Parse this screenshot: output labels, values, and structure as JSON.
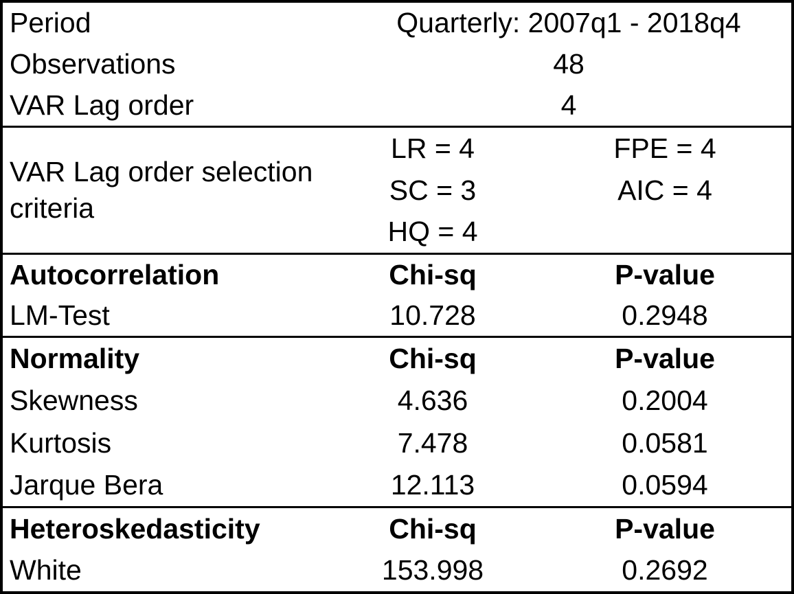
{
  "page": {
    "background_color": "#ffffff",
    "border_color": "#000000",
    "text_color": "#000000"
  },
  "table": {
    "info_rows": [
      {
        "label": "Period",
        "value": "Quarterly: 2007q1 - 2018q4"
      },
      {
        "label": "Observations",
        "value": "48"
      },
      {
        "label": "VAR Lag order",
        "value": "4"
      }
    ],
    "lag_selection": {
      "label_line1": "VAR Lag order selection",
      "label_line2": "criteria",
      "criteria_col_a": [
        "LR = 4",
        "SC = 3",
        "HQ = 4"
      ],
      "criteria_col_b": [
        "FPE = 4",
        "AIC = 4"
      ]
    },
    "test_sections": [
      {
        "title": "Autocorrelation",
        "stat_header": "Chi-sq",
        "p_header": "P-value",
        "rows": [
          {
            "label": "LM-Test",
            "stat": "10.728",
            "p": "0.2948"
          }
        ]
      },
      {
        "title": "Normality",
        "stat_header": "Chi-sq",
        "p_header": "P-value",
        "rows": [
          {
            "label": "Skewness",
            "stat": "4.636",
            "p": "0.2004"
          },
          {
            "label": "Kurtosis",
            "stat": "7.478",
            "p": "0.0581"
          },
          {
            "label": "Jarque Bera",
            "stat": "12.113",
            "p": "0.0594"
          }
        ]
      },
      {
        "title": "Heteroskedasticity",
        "stat_header": "Chi-sq",
        "p_header": "P-value",
        "rows": [
          {
            "label": "White",
            "stat": "153.998",
            "p": "0.2692"
          }
        ]
      }
    ]
  }
}
